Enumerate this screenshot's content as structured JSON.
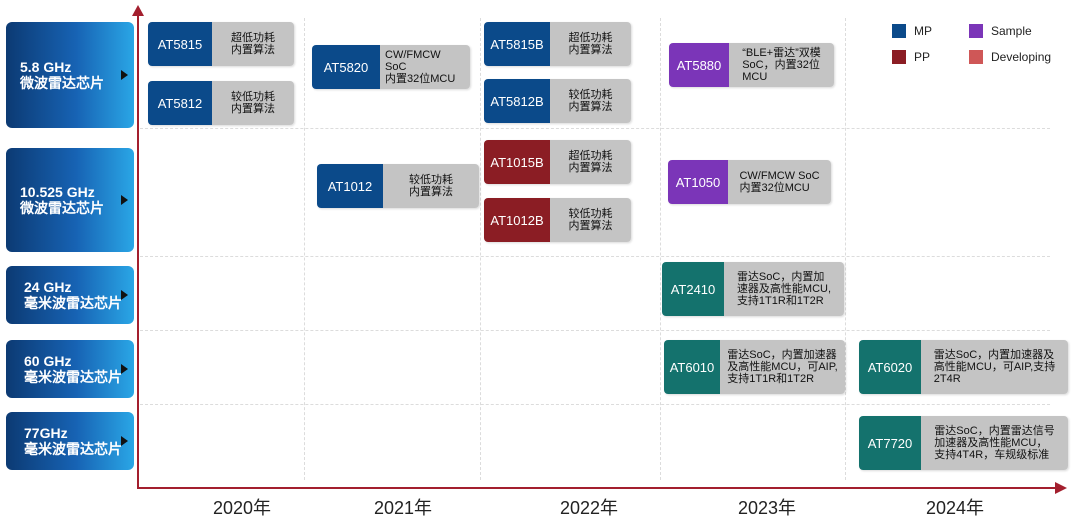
{
  "colors": {
    "mp": "#0b4a8a",
    "pp": "#8b1d24",
    "sample": "#7b35b8",
    "developing": "#cf5757",
    "teal": "#14726d"
  },
  "legend": [
    {
      "name": "MP",
      "color": "#0b4a8a"
    },
    {
      "name": "Sample",
      "color": "#7b35b8"
    },
    {
      "name": "PP",
      "color": "#8b1d24"
    },
    {
      "name": "Developing",
      "color": "#cf5757"
    }
  ],
  "years": [
    "2020年",
    "2021年",
    "2022年",
    "2023年",
    "2024年"
  ],
  "rows": [
    {
      "title": "5.8 GHz",
      "subtitle": "微波雷达芯片"
    },
    {
      "title": "10.525 GHz",
      "subtitle": "微波雷达芯片"
    },
    {
      "title": "24 GHz",
      "subtitle": "毫米波雷达芯片"
    },
    {
      "title": "60 GHz",
      "subtitle": "毫米波雷达芯片"
    },
    {
      "title": "77GHz",
      "subtitle": "毫米波雷达芯片"
    }
  ],
  "chips": [
    {
      "code": "AT5815",
      "desc": "超低功耗\n内置算法",
      "status": "mp"
    },
    {
      "code": "AT5812",
      "desc": "较低功耗\n内置算法",
      "status": "mp"
    },
    {
      "code": "AT5820",
      "desc": "CW/FMCW SoC\n内置32位MCU",
      "status": "mp"
    },
    {
      "code": "AT5815B",
      "desc": "超低功耗\n内置算法",
      "status": "mp"
    },
    {
      "code": "AT5812B",
      "desc": "较低功耗\n内置算法",
      "status": "mp"
    },
    {
      "code": "AT5880",
      "desc": "“BLE+雷达”双模\nSoC，内置32位\nMCU",
      "status": "sample"
    },
    {
      "code": "AT1012",
      "desc": "较低功耗\n内置算法",
      "status": "mp"
    },
    {
      "code": "AT1015B",
      "desc": "超低功耗\n内置算法",
      "status": "pp"
    },
    {
      "code": "AT1012B",
      "desc": "较低功耗\n内置算法",
      "status": "pp"
    },
    {
      "code": "AT1050",
      "desc": "CW/FMCW SoC\n内置32位MCU",
      "status": "sample"
    },
    {
      "code": "AT2410",
      "desc": "雷达SoC，内置加\n速器及高性能MCU,\n支持1T1R和1T2R",
      "status": "teal"
    },
    {
      "code": "AT6010",
      "desc": "雷达SoC，内置加速器\n及高性能MCU，可AIP,\n支持1T1R和1T2R",
      "status": "teal"
    },
    {
      "code": "AT6020",
      "desc": "雷达SoC，内置加速器及\n高性能MCU，可AIP,支持\n2T4R",
      "status": "teal"
    },
    {
      "code": "AT7720",
      "desc": "雷达SoC，内置雷达信号\n加速器及高性能MCU，\n支持4T4R，车规级标准",
      "status": "teal"
    }
  ]
}
